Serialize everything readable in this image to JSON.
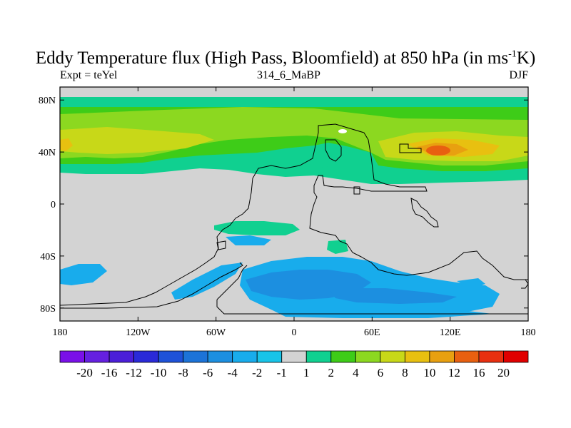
{
  "figure": {
    "title_main": "Eddy Temperature flux (High Pass, Bloomfield) at 850 hPa (in ms",
    "title_sup": "-1",
    "title_tail": "K)",
    "left_label": "Expt = teYel",
    "center_label": "314_6_MaBP",
    "right_label": "DJF"
  },
  "map": {
    "lon_range": [
      -180,
      180
    ],
    "lat_range": [
      -90,
      90
    ],
    "lon_ticks": [
      {
        "value": -180,
        "label": "180"
      },
      {
        "value": -120,
        "label": "120W"
      },
      {
        "value": -60,
        "label": "60W"
      },
      {
        "value": 0,
        "label": "0"
      },
      {
        "value": 60,
        "label": "60E"
      },
      {
        "value": 120,
        "label": "120E"
      },
      {
        "value": 180,
        "label": "180"
      }
    ],
    "lat_ticks": [
      {
        "value": 80,
        "label": "80N"
      },
      {
        "value": 40,
        "label": "40N"
      },
      {
        "value": 0,
        "label": "0"
      },
      {
        "value": -40,
        "label": "40S"
      },
      {
        "value": -80,
        "label": "80S"
      }
    ],
    "background_color": "#d3d3d3"
  },
  "colorbar": {
    "levels": [
      "-20",
      "-16",
      "-12",
      "-10",
      "-8",
      "-6",
      "-4",
      "-2",
      "-1",
      "1",
      "2",
      "4",
      "6",
      "8",
      "10",
      "12",
      "16",
      "20"
    ],
    "colors": [
      "#7a10e8",
      "#6520e0",
      "#4b1ed8",
      "#2a2ad8",
      "#1e52d8",
      "#1c73d8",
      "#1c8fe0",
      "#18acec",
      "#18c4e8",
      "#d3d3d3",
      "#10d090",
      "#3ecc18",
      "#8cd820",
      "#c8d818",
      "#e8c010",
      "#e8a010",
      "#e86010",
      "#e83010",
      "#e00000"
    ]
  }
}
